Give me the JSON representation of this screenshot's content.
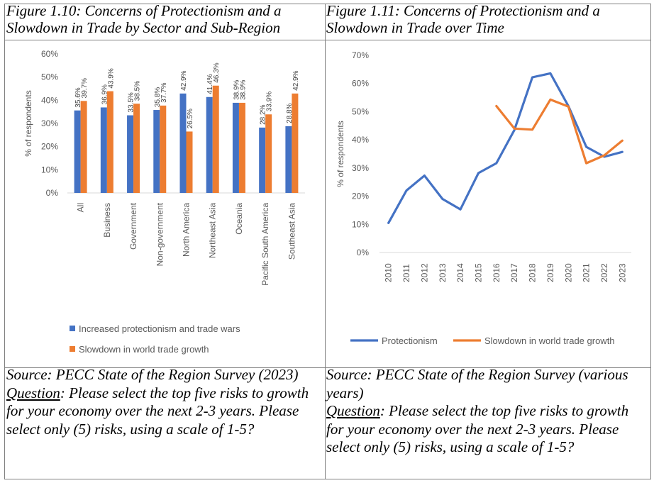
{
  "left_panel": {
    "caption": "Figure 1.10: Concerns of Protectionism and a Slowdown in Trade by Sector and Sub-Region",
    "source": "Source: PECC State of the Region Survey (2023)",
    "question_label": "Question",
    "question_text": ": Please select the top five risks to growth for your economy over the next 2-3 years. Please select only (5) risks, using a scale of 1-5?"
  },
  "right_panel": {
    "caption": "Figure 1.11: Concerns of Protectionism and a Slowdown in Trade over Time",
    "source": "Source: PECC State of the Region Survey (various years)",
    "question_label": "Question",
    "question_text": ": Please select the top five risks to growth for your economy over the next 2-3 years. Please select only (5) risks, using a scale of 1-5?"
  },
  "chart_data": [
    {
      "type": "bar",
      "ylabel": "% of respondents",
      "ylim": [
        0,
        60
      ],
      "yticks": [
        "0%",
        "10%",
        "20%",
        "30%",
        "40%",
        "50%",
        "60%"
      ],
      "grid": false,
      "legend_position": "bottom",
      "categories": [
        "All",
        "Business",
        "Government",
        "Non-government",
        "North America",
        "Northeast Asia",
        "Oceania",
        "Pacific South America",
        "Southeast Asia"
      ],
      "series": [
        {
          "name": "Increased protectionism and trade wars",
          "color": "#4472c4",
          "values": [
            35.6,
            36.9,
            33.5,
            35.8,
            42.9,
            41.4,
            38.9,
            28.2,
            28.8
          ],
          "labels": [
            "35.6%",
            "36.9%",
            "33.5%",
            "35.8%",
            "42.9%",
            "41.4%",
            "38.9%",
            "28.2%",
            "28.8%"
          ]
        },
        {
          "name": "Slowdown in world trade growth",
          "color": "#ed7d31",
          "values": [
            39.7,
            43.9,
            38.5,
            37.7,
            26.5,
            46.3,
            38.9,
            33.9,
            42.9
          ],
          "labels": [
            "39.7%",
            "43.9%",
            "38.5%",
            "37.7%",
            "26.5%",
            "46.3%",
            "38.9%",
            "33.9%",
            "42.9%"
          ]
        }
      ]
    },
    {
      "type": "line",
      "ylabel": "% of respondents",
      "ylim": [
        0,
        70
      ],
      "yticks": [
        "0%",
        "10%",
        "20%",
        "30%",
        "40%",
        "50%",
        "60%",
        "70%"
      ],
      "grid": false,
      "legend_position": "bottom",
      "x": [
        "2010",
        "2011",
        "2012",
        "2013",
        "2014",
        "2015",
        "2016",
        "2017",
        "2018",
        "2019",
        "2020",
        "2021",
        "2022",
        "2023"
      ],
      "series": [
        {
          "name": "Protectionism",
          "color": "#4472c4",
          "values": [
            10.5,
            22,
            27.3,
            19,
            15.3,
            28.2,
            31.7,
            43.5,
            62.2,
            63.6,
            52,
            37.5,
            34,
            35.7
          ]
        },
        {
          "name": "Slowdown in world trade growth",
          "color": "#ed7d31",
          "values": [
            null,
            null,
            null,
            null,
            null,
            null,
            52,
            44,
            43.6,
            54.3,
            51.8,
            31.7,
            34.5,
            39.7
          ]
        }
      ]
    }
  ]
}
